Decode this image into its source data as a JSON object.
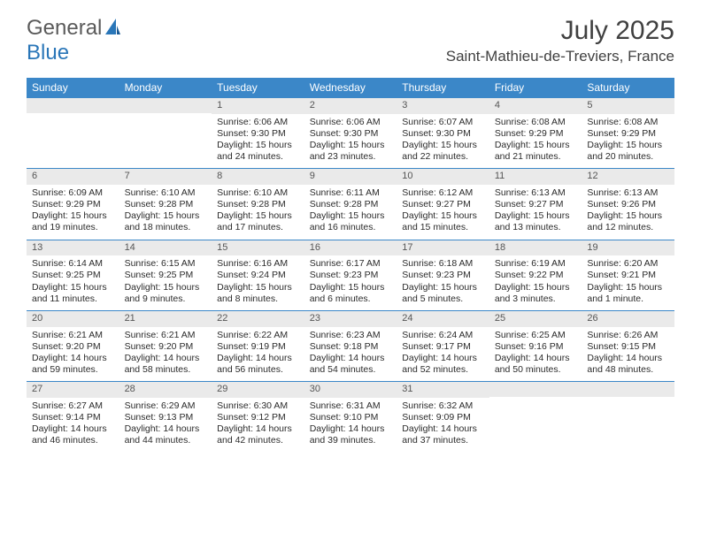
{
  "brand": {
    "part1": "General",
    "part2": "Blue"
  },
  "title": "July 2025",
  "location": "Saint-Mathieu-de-Treviers, France",
  "colors": {
    "header_bg": "#3b87c8",
    "header_text": "#ffffff",
    "daynum_bg": "#eaeaea",
    "border": "#3b87c8",
    "text": "#2b2b2b",
    "title_text": "#404040",
    "logo_gray": "#5a5a5a",
    "logo_blue": "#2a76b8",
    "background": "#ffffff"
  },
  "day_names": [
    "Sunday",
    "Monday",
    "Tuesday",
    "Wednesday",
    "Thursday",
    "Friday",
    "Saturday"
  ],
  "weeks": [
    [
      null,
      null,
      {
        "n": "1",
        "sr": "6:06 AM",
        "ss": "9:30 PM",
        "dl": "15 hours and 24 minutes."
      },
      {
        "n": "2",
        "sr": "6:06 AM",
        "ss": "9:30 PM",
        "dl": "15 hours and 23 minutes."
      },
      {
        "n": "3",
        "sr": "6:07 AM",
        "ss": "9:30 PM",
        "dl": "15 hours and 22 minutes."
      },
      {
        "n": "4",
        "sr": "6:08 AM",
        "ss": "9:29 PM",
        "dl": "15 hours and 21 minutes."
      },
      {
        "n": "5",
        "sr": "6:08 AM",
        "ss": "9:29 PM",
        "dl": "15 hours and 20 minutes."
      }
    ],
    [
      {
        "n": "6",
        "sr": "6:09 AM",
        "ss": "9:29 PM",
        "dl": "15 hours and 19 minutes."
      },
      {
        "n": "7",
        "sr": "6:10 AM",
        "ss": "9:28 PM",
        "dl": "15 hours and 18 minutes."
      },
      {
        "n": "8",
        "sr": "6:10 AM",
        "ss": "9:28 PM",
        "dl": "15 hours and 17 minutes."
      },
      {
        "n": "9",
        "sr": "6:11 AM",
        "ss": "9:28 PM",
        "dl": "15 hours and 16 minutes."
      },
      {
        "n": "10",
        "sr": "6:12 AM",
        "ss": "9:27 PM",
        "dl": "15 hours and 15 minutes."
      },
      {
        "n": "11",
        "sr": "6:13 AM",
        "ss": "9:27 PM",
        "dl": "15 hours and 13 minutes."
      },
      {
        "n": "12",
        "sr": "6:13 AM",
        "ss": "9:26 PM",
        "dl": "15 hours and 12 minutes."
      }
    ],
    [
      {
        "n": "13",
        "sr": "6:14 AM",
        "ss": "9:25 PM",
        "dl": "15 hours and 11 minutes."
      },
      {
        "n": "14",
        "sr": "6:15 AM",
        "ss": "9:25 PM",
        "dl": "15 hours and 9 minutes."
      },
      {
        "n": "15",
        "sr": "6:16 AM",
        "ss": "9:24 PM",
        "dl": "15 hours and 8 minutes."
      },
      {
        "n": "16",
        "sr": "6:17 AM",
        "ss": "9:23 PM",
        "dl": "15 hours and 6 minutes."
      },
      {
        "n": "17",
        "sr": "6:18 AM",
        "ss": "9:23 PM",
        "dl": "15 hours and 5 minutes."
      },
      {
        "n": "18",
        "sr": "6:19 AM",
        "ss": "9:22 PM",
        "dl": "15 hours and 3 minutes."
      },
      {
        "n": "19",
        "sr": "6:20 AM",
        "ss": "9:21 PM",
        "dl": "15 hours and 1 minute."
      }
    ],
    [
      {
        "n": "20",
        "sr": "6:21 AM",
        "ss": "9:20 PM",
        "dl": "14 hours and 59 minutes."
      },
      {
        "n": "21",
        "sr": "6:21 AM",
        "ss": "9:20 PM",
        "dl": "14 hours and 58 minutes."
      },
      {
        "n": "22",
        "sr": "6:22 AM",
        "ss": "9:19 PM",
        "dl": "14 hours and 56 minutes."
      },
      {
        "n": "23",
        "sr": "6:23 AM",
        "ss": "9:18 PM",
        "dl": "14 hours and 54 minutes."
      },
      {
        "n": "24",
        "sr": "6:24 AM",
        "ss": "9:17 PM",
        "dl": "14 hours and 52 minutes."
      },
      {
        "n": "25",
        "sr": "6:25 AM",
        "ss": "9:16 PM",
        "dl": "14 hours and 50 minutes."
      },
      {
        "n": "26",
        "sr": "6:26 AM",
        "ss": "9:15 PM",
        "dl": "14 hours and 48 minutes."
      }
    ],
    [
      {
        "n": "27",
        "sr": "6:27 AM",
        "ss": "9:14 PM",
        "dl": "14 hours and 46 minutes."
      },
      {
        "n": "28",
        "sr": "6:29 AM",
        "ss": "9:13 PM",
        "dl": "14 hours and 44 minutes."
      },
      {
        "n": "29",
        "sr": "6:30 AM",
        "ss": "9:12 PM",
        "dl": "14 hours and 42 minutes."
      },
      {
        "n": "30",
        "sr": "6:31 AM",
        "ss": "9:10 PM",
        "dl": "14 hours and 39 minutes."
      },
      {
        "n": "31",
        "sr": "6:32 AM",
        "ss": "9:09 PM",
        "dl": "14 hours and 37 minutes."
      },
      null,
      null
    ]
  ],
  "labels": {
    "sunrise": "Sunrise: ",
    "sunset": "Sunset: ",
    "daylight": "Daylight: "
  }
}
